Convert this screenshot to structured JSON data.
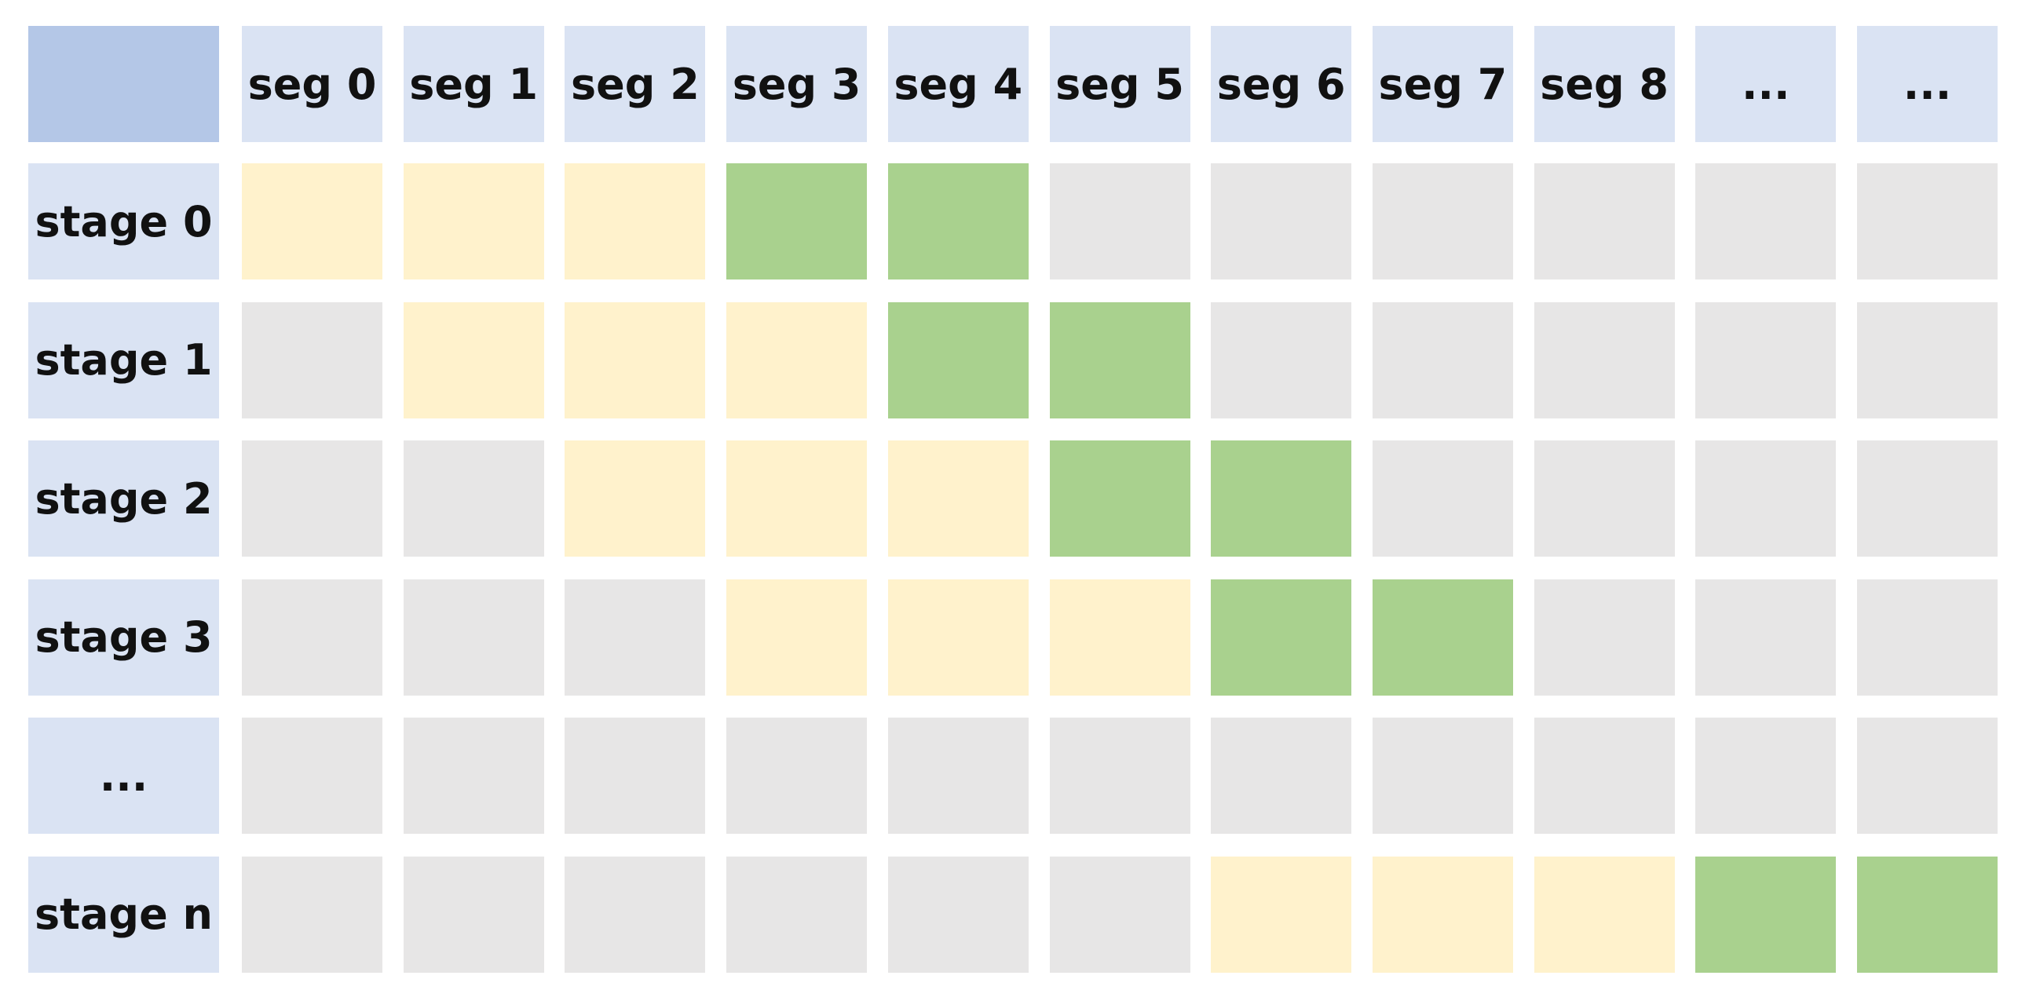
{
  "grid": {
    "columns": [
      "seg 0",
      "seg 1",
      "seg 2",
      "seg 3",
      "seg 4",
      "seg 5",
      "seg 6",
      "seg 7",
      "seg 8",
      "...",
      "..."
    ],
    "rows": [
      {
        "label": "stage 0",
        "cells": [
          "yellow",
          "yellow",
          "yellow",
          "green",
          "green",
          "gray",
          "gray",
          "gray",
          "gray",
          "gray",
          "gray"
        ]
      },
      {
        "label": "stage 1",
        "cells": [
          "gray",
          "yellow",
          "yellow",
          "yellow",
          "green",
          "green",
          "gray",
          "gray",
          "gray",
          "gray",
          "gray"
        ]
      },
      {
        "label": "stage 2",
        "cells": [
          "gray",
          "gray",
          "yellow",
          "yellow",
          "yellow",
          "green",
          "green",
          "gray",
          "gray",
          "gray",
          "gray"
        ]
      },
      {
        "label": "stage 3",
        "cells": [
          "gray",
          "gray",
          "gray",
          "yellow",
          "yellow",
          "yellow",
          "green",
          "green",
          "gray",
          "gray",
          "gray"
        ]
      },
      {
        "label": "...",
        "cells": [
          "gray",
          "gray",
          "gray",
          "gray",
          "gray",
          "gray",
          "gray",
          "gray",
          "gray",
          "gray",
          "gray"
        ]
      },
      {
        "label": "stage n",
        "cells": [
          "gray",
          "gray",
          "gray",
          "gray",
          "gray",
          "gray",
          "yellow",
          "yellow",
          "yellow",
          "green",
          "green"
        ]
      }
    ],
    "colors": {
      "corner": "#b4c7e7",
      "header": "#dae3f3",
      "yellow": "#fff2cc",
      "green": "#a9d18e",
      "gray": "#e7e6e6"
    }
  }
}
